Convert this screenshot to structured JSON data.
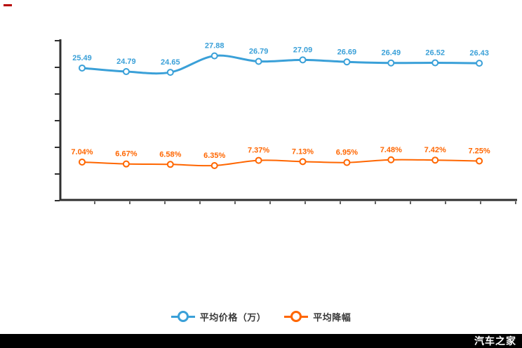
{
  "chart_data": {
    "type": "line",
    "title": "",
    "xlabel": "",
    "ylabel": "",
    "x_count": 10,
    "ylim": [
      0,
      30
    ],
    "grid": false,
    "legend_position": "bottom",
    "series": [
      {
        "name": "平均价格（万）",
        "color": "#3aa0d8",
        "values": [
          25.49,
          24.79,
          24.65,
          27.88,
          26.79,
          27.09,
          26.69,
          26.49,
          26.52,
          26.43
        ],
        "labels": [
          "25.49",
          "24.79",
          "24.65",
          "27.88",
          "26.79",
          "27.09",
          "26.69",
          "26.49",
          "26.52",
          "26.43"
        ],
        "line_width": 3
      },
      {
        "name": "平均降幅",
        "color": "#ff6600",
        "values": [
          7.04,
          6.67,
          6.58,
          6.35,
          7.37,
          7.13,
          6.95,
          7.48,
          7.42,
          7.25
        ],
        "labels": [
          "7.04%",
          "6.67%",
          "6.58%",
          "6.35%",
          "7.37%",
          "7.13%",
          "6.95%",
          "7.48%",
          "7.42%",
          "7.25%"
        ],
        "line_width": 2
      }
    ]
  },
  "legend": {
    "items": [
      {
        "label": "平均价格（万）",
        "color": "#3aa0d8"
      },
      {
        "label": "平均降幅",
        "color": "#ff6600"
      }
    ]
  },
  "watermark": {
    "text": "汽车之家",
    "bar_color": "#000000",
    "text_color": "#ffffff"
  },
  "decorations": {
    "red_dash_color": "#b70000",
    "axis_color": "#2f2f2f"
  }
}
